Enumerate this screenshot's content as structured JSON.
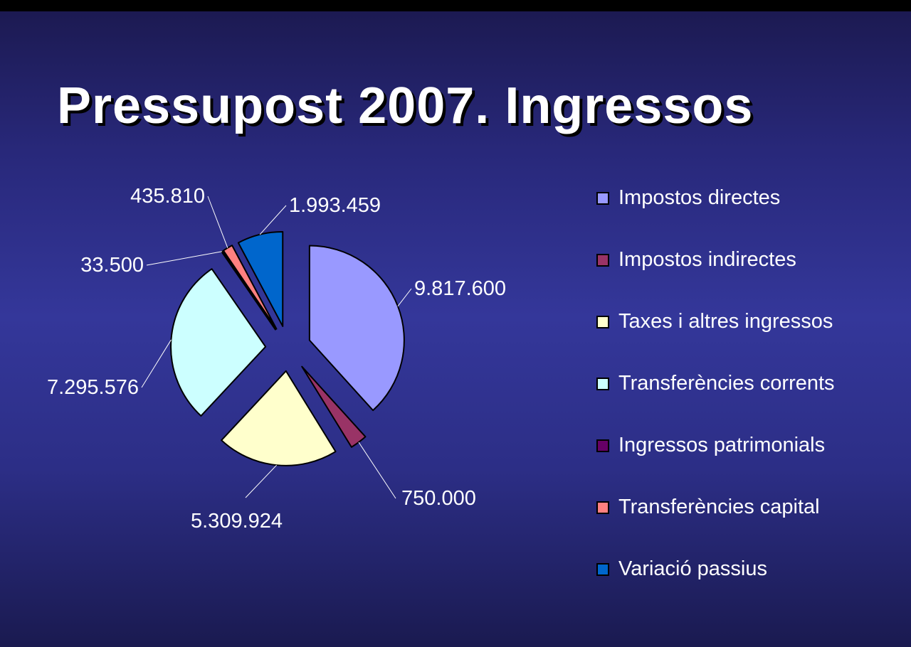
{
  "slide": {
    "title": "Pressupost 2007. Ingressos"
  },
  "chart_data": {
    "type": "pie",
    "exploded": true,
    "legend_position": "right",
    "categories": [
      "Impostos directes",
      "Impostos indirectes",
      "Taxes i altres ingressos",
      "Transferències corrents",
      "Ingressos patrimonials",
      "Transferències capital",
      "Variació passius"
    ],
    "values": [
      9817600,
      750000,
      5309924,
      7295576,
      33500,
      435810,
      1993459
    ],
    "data_labels": [
      "9.817.600",
      "750.000",
      "5.309.924",
      "7.295.576",
      "33.500",
      "435.810",
      "1.993.459"
    ],
    "colors": [
      "#9999ff",
      "#993366",
      "#ffffcc",
      "#ccffff",
      "#660066",
      "#ff8080",
      "#0066cc"
    ]
  }
}
